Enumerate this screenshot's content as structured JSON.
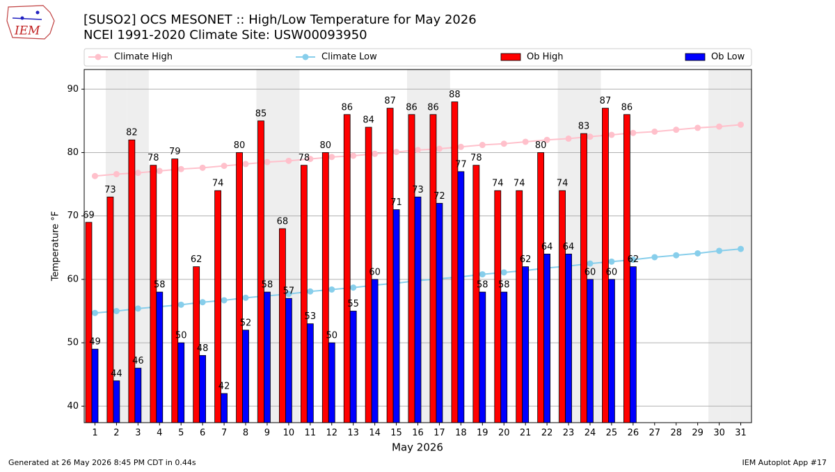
{
  "logo_text": "IEM",
  "footer_left": "Generated at 26 May 2026 8:45 PM CDT in 0.44s",
  "footer_right": "IEM Autoplot App #17",
  "chart_data": {
    "type": "bar",
    "title": "[SUSO2] OCS MESONET :: High/Low Temperature for May 2026",
    "subtitle": "NCEI 1991-2020 Climate Site: USW00093950",
    "x_label": "May 2026",
    "y_label": "Temperature °F",
    "categories": [
      "1",
      "2",
      "3",
      "4",
      "5",
      "6",
      "7",
      "8",
      "9",
      "10",
      "11",
      "12",
      "13",
      "14",
      "15",
      "16",
      "17",
      "18",
      "19",
      "20",
      "21",
      "22",
      "23",
      "24",
      "25",
      "26",
      "27",
      "28",
      "29",
      "30",
      "31"
    ],
    "weekend_days": [
      2,
      3,
      9,
      10,
      16,
      17,
      23,
      24,
      30,
      31
    ],
    "series": [
      {
        "name": "Climate High",
        "type": "line",
        "color": "#ffc0cb",
        "values": [
          76.3,
          76.6,
          76.8,
          77.1,
          77.4,
          77.6,
          77.9,
          78.2,
          78.5,
          78.7,
          79.0,
          79.3,
          79.5,
          79.8,
          80.1,
          80.4,
          80.6,
          80.9,
          81.2,
          81.4,
          81.7,
          82.0,
          82.2,
          82.5,
          82.8,
          83.1,
          83.3,
          83.6,
          83.9,
          84.1,
          84.4
        ]
      },
      {
        "name": "Climate Low",
        "type": "line",
        "color": "#87ceeb",
        "values": [
          54.7,
          55.0,
          55.4,
          55.7,
          56.0,
          56.4,
          56.7,
          57.1,
          57.4,
          57.7,
          58.1,
          58.4,
          58.7,
          59.1,
          59.4,
          59.8,
          60.1,
          60.4,
          60.8,
          61.1,
          61.4,
          61.8,
          62.1,
          62.5,
          62.8,
          63.1,
          63.5,
          63.8,
          64.1,
          64.5,
          64.8
        ]
      },
      {
        "name": "Ob High",
        "type": "bar",
        "color": "#ff0000",
        "values": [
          69,
          73,
          82,
          78,
          79,
          62,
          74,
          80,
          85,
          68,
          78,
          80,
          86,
          84,
          87,
          86,
          86,
          88,
          78,
          74,
          74,
          80,
          74,
          83,
          87,
          86,
          null,
          null,
          null,
          null,
          null
        ]
      },
      {
        "name": "Ob Low",
        "type": "bar",
        "color": "#0000ff",
        "values": [
          49,
          44,
          46,
          58,
          50,
          48,
          42,
          52,
          58,
          57,
          53,
          50,
          55,
          60,
          71,
          73,
          72,
          77,
          58,
          58,
          62,
          64,
          64,
          60,
          60,
          62,
          null,
          null,
          null,
          null,
          null
        ]
      }
    ],
    "ylim": [
      37.4,
      93.1
    ],
    "yticks": [
      40,
      50,
      60,
      70,
      80,
      90
    ],
    "grid": true
  }
}
